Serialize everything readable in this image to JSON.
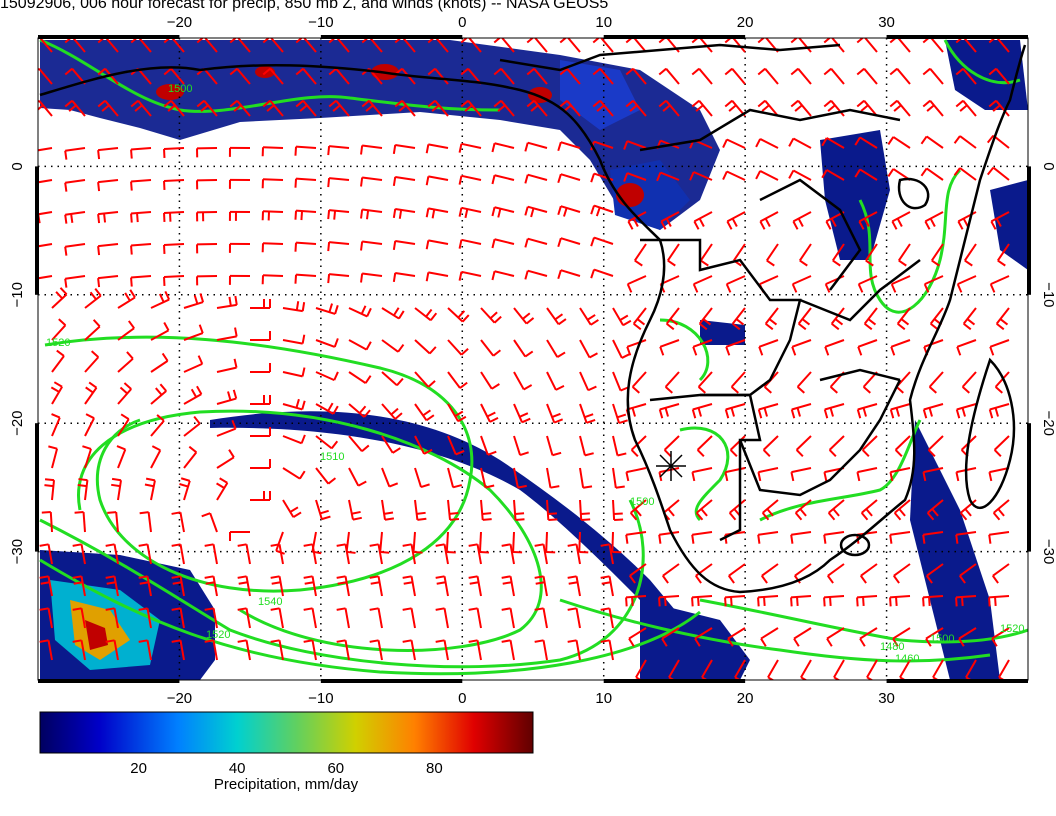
{
  "title": "15092906, 006 hour forecast for precip, 850 mb Z, and winds (knots) -- NASA GEOS5",
  "map": {
    "lon_range": [
      -30,
      40
    ],
    "lat_range": [
      -40,
      10
    ],
    "bottom_lon_ticks": [
      "-20",
      "-10",
      "0",
      "10",
      "20",
      "30"
    ],
    "top_lon_ticks": [
      "-20",
      "-10",
      "0",
      "10",
      "20",
      "30"
    ],
    "left_lat_ticks": [
      "0",
      "-10",
      "-20",
      "-30"
    ],
    "right_lat_ticks": [
      "0",
      "-10",
      "-20",
      "-30"
    ],
    "contour_labels": [
      "1500",
      "1520",
      "1510",
      "1540",
      "1520",
      "1500",
      "1460",
      "1480",
      "1500",
      "1520"
    ],
    "colors": {
      "precip_low": "#0a1a8c",
      "precip_mid": "#00c0c8",
      "precip_high": "#c00000",
      "contour": "#22dd22",
      "wind_barb": "#ff0000",
      "coast": "#000000",
      "grid": "#000000"
    }
  },
  "colorbar": {
    "ticks": [
      "20",
      "40",
      "60",
      "80"
    ],
    "tick_values": [
      20,
      40,
      60,
      80
    ],
    "range": [
      0,
      100
    ],
    "label": "Precipitation, mm/day",
    "stops": [
      "#000060",
      "#0000c8",
      "#0080ff",
      "#00d0d0",
      "#60d060",
      "#d0d000",
      "#ff8000",
      "#e00000",
      "#600000"
    ]
  }
}
